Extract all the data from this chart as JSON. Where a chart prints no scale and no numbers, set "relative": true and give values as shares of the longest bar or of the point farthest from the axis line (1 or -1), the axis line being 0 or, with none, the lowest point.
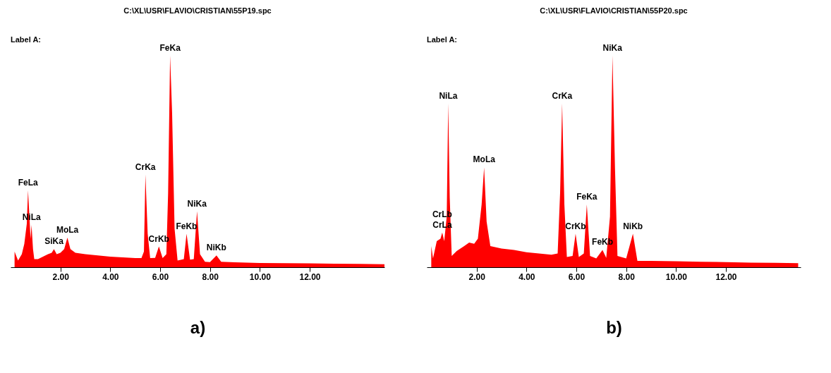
{
  "chart_data": [
    {
      "type": "area",
      "title": "C:\\XL\\USR\\FLAVIO\\CRISTIAN\\55P19.spc",
      "subtitle": "Label A:",
      "xlabel": "a)",
      "relative": true,
      "grid": false,
      "xlim": [
        0,
        15
      ],
      "xticks": [
        {
          "value": 2,
          "label": "2.00"
        },
        {
          "value": 4,
          "label": "4.00"
        },
        {
          "value": 6,
          "label": "6.00"
        },
        {
          "value": 8,
          "label": "8.00"
        },
        {
          "value": 10,
          "label": "10.00"
        },
        {
          "value": 12,
          "label": "12.00"
        }
      ],
      "series": [
        {
          "color": "#ff0000",
          "x": [
            0.16,
            0.2,
            0.3,
            0.45,
            0.55,
            0.65,
            0.7,
            0.76,
            0.8,
            0.84,
            0.9,
            0.95,
            1.1,
            1.3,
            1.5,
            1.65,
            1.74,
            1.85,
            2.0,
            2.15,
            2.28,
            2.4,
            2.6,
            3.0,
            3.5,
            4.0,
            4.5,
            5.0,
            5.25,
            5.35,
            5.41,
            5.5,
            5.6,
            5.8,
            5.95,
            6.1,
            6.25,
            6.32,
            6.4,
            6.48,
            6.58,
            6.7,
            6.95,
            7.06,
            7.2,
            7.35,
            7.48,
            7.6,
            7.8,
            8.0,
            8.26,
            8.45,
            9.0,
            10,
            11,
            12,
            13,
            14,
            15
          ],
          "values": [
            0.074,
            0.062,
            0.032,
            0.062,
            0.11,
            0.205,
            0.363,
            0.23,
            0.134,
            0.2,
            0.086,
            0.038,
            0.038,
            0.05,
            0.062,
            0.068,
            0.086,
            0.062,
            0.068,
            0.086,
            0.14,
            0.086,
            0.068,
            0.062,
            0.056,
            0.05,
            0.047,
            0.043,
            0.043,
            0.074,
            0.438,
            0.158,
            0.043,
            0.044,
            0.098,
            0.043,
            0.062,
            0.349,
            1.0,
            0.731,
            0.182,
            0.032,
            0.038,
            0.158,
            0.036,
            0.038,
            0.265,
            0.062,
            0.026,
            0.024,
            0.056,
            0.026,
            0.023,
            0.02,
            0.019,
            0.018,
            0.017,
            0.016,
            0.014
          ]
        }
      ],
      "annotations": [
        {
          "text": "FeLa",
          "x": 0.7,
          "y": 0.363
        },
        {
          "text": "NiLa",
          "x": 0.84,
          "y": 0.2
        },
        {
          "text": "SiKa",
          "x": 1.74,
          "y": 0.086
        },
        {
          "text": "MoLa",
          "x": 2.28,
          "y": 0.14
        },
        {
          "text": "CrKa",
          "x": 5.41,
          "y": 0.438
        },
        {
          "text": "CrKb",
          "x": 5.95,
          "y": 0.098
        },
        {
          "text": "FeKa",
          "x": 6.4,
          "y": 1.0
        },
        {
          "text": "FeKb",
          "x": 7.06,
          "y": 0.158
        },
        {
          "text": "NiKa",
          "x": 7.48,
          "y": 0.265
        },
        {
          "text": "NiKb",
          "x": 8.26,
          "y": 0.056
        }
      ]
    },
    {
      "type": "area",
      "title": "C:\\XL\\USR\\FLAVIO\\CRISTIAN\\55P20.spc",
      "subtitle": "Label A:",
      "xlabel": "b)",
      "relative": true,
      "grid": false,
      "xlim": [
        0,
        15
      ],
      "xticks": [
        {
          "value": 2,
          "label": "2.00"
        },
        {
          "value": 4,
          "label": "4.00"
        },
        {
          "value": 6,
          "label": "6.00"
        },
        {
          "value": 8,
          "label": "8.00"
        },
        {
          "value": 10,
          "label": "10.00"
        },
        {
          "value": 12,
          "label": "12.00"
        }
      ],
      "series": [
        {
          "color": "#ff0000",
          "x": [
            0.18,
            0.25,
            0.4,
            0.55,
            0.62,
            0.7,
            0.8,
            0.86,
            0.92,
            1.0,
            1.2,
            1.5,
            1.7,
            1.9,
            2.05,
            2.2,
            2.3,
            2.4,
            2.55,
            3.0,
            3.5,
            4.0,
            4.5,
            5.0,
            5.25,
            5.35,
            5.43,
            5.52,
            5.62,
            5.85,
            5.97,
            6.1,
            6.3,
            6.42,
            6.55,
            6.8,
            7.05,
            7.2,
            7.35,
            7.45,
            7.55,
            7.65,
            8.0,
            8.27,
            8.45,
            9.0,
            10,
            11,
            12,
            13,
            14,
            14.9
          ],
          "values": [
            0.1,
            0.042,
            0.123,
            0.135,
            0.164,
            0.123,
            0.239,
            0.774,
            0.332,
            0.053,
            0.077,
            0.1,
            0.117,
            0.111,
            0.135,
            0.297,
            0.472,
            0.216,
            0.1,
            0.088,
            0.082,
            0.071,
            0.065,
            0.059,
            0.065,
            0.355,
            0.774,
            0.297,
            0.048,
            0.053,
            0.158,
            0.048,
            0.065,
            0.297,
            0.053,
            0.042,
            0.082,
            0.044,
            0.239,
            1.0,
            0.472,
            0.053,
            0.042,
            0.158,
            0.03,
            0.03,
            0.028,
            0.026,
            0.024,
            0.022,
            0.021,
            0.019
          ]
        }
      ],
      "annotations": [
        {
          "text": "NiLa",
          "x": 0.86,
          "y": 0.774
        },
        {
          "text": "CrLb",
          "x": 0.62,
          "y": 0.164
        },
        {
          "text": "CrLa",
          "x": 0.62,
          "y": 0.164
        },
        {
          "text": "MoLa",
          "x": 2.3,
          "y": 0.472
        },
        {
          "text": "CrKa",
          "x": 5.43,
          "y": 0.774
        },
        {
          "text": "CrKb",
          "x": 5.97,
          "y": 0.158
        },
        {
          "text": "FeKa",
          "x": 6.42,
          "y": 0.297
        },
        {
          "text": "FeKb",
          "x": 7.05,
          "y": 0.082
        },
        {
          "text": "NiKa",
          "x": 7.45,
          "y": 1.0
        },
        {
          "text": "NiKb",
          "x": 8.27,
          "y": 0.158
        }
      ]
    }
  ]
}
